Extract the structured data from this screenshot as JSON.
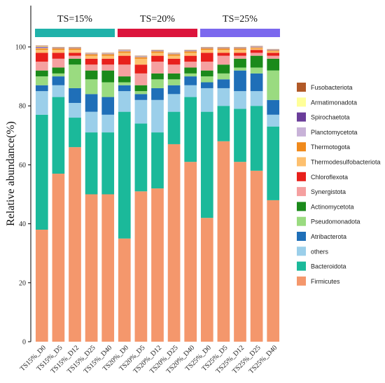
{
  "chart_data": {
    "type": "bar",
    "stacked": true,
    "ylabel": "Relative abundance(%)",
    "xlabel": "",
    "ylim": [
      0,
      100
    ],
    "yticks": [
      0,
      20,
      40,
      60,
      80,
      100
    ],
    "grid": false,
    "legend_position": "right",
    "groups": [
      {
        "label": "TS=15%",
        "color": "#20B2AA",
        "members": [
          0,
          1,
          2,
          3,
          4
        ]
      },
      {
        "label": "TS=20%",
        "color": "#DC143C",
        "members": [
          5,
          6,
          7,
          8,
          9
        ]
      },
      {
        "label": "TS=25%",
        "color": "#7B68EE",
        "members": [
          10,
          11,
          12,
          13,
          14
        ]
      }
    ],
    "categories": [
      "TS15%_D0",
      "TS15%_D5",
      "TS15%_D12",
      "TS15%_D25",
      "TS15%_D40",
      "TS20%_D0",
      "TS20%_D5",
      "TS20%_D12",
      "TS20%_D25",
      "TS20%_D40",
      "TS25%_D0",
      "TS25%_D5",
      "TS25%_D12",
      "TS25%_D25",
      "TS25%_D40"
    ],
    "series": [
      {
        "name": "Firmicutes",
        "color": "#F4976C",
        "values": [
          38,
          57,
          66,
          50,
          50,
          35,
          51,
          52,
          67,
          61,
          42,
          68,
          61,
          58,
          48
        ]
      },
      {
        "name": "Bacteroidota",
        "color": "#1BB99A",
        "values": [
          39,
          26,
          10,
          21,
          21,
          43,
          23,
          19,
          11,
          22,
          36,
          12,
          18,
          22,
          25
        ]
      },
      {
        "name": "others",
        "color": "#9BCFEA",
        "values": [
          8,
          4,
          5,
          7,
          6,
          7,
          8,
          11,
          6,
          4,
          8,
          6,
          6,
          5,
          4
        ]
      },
      {
        "name": "Atribacterota",
        "color": "#1F6FB8",
        "values": [
          2,
          3,
          5,
          6,
          6,
          2,
          2,
          4,
          3,
          3,
          2,
          3,
          7,
          6,
          5
        ]
      },
      {
        "name": "Pseudomonadota",
        "color": "#9ADB80",
        "values": [
          3,
          1,
          8,
          5,
          5,
          1,
          1,
          3,
          2,
          1,
          2,
          2,
          1,
          2,
          10
        ]
      },
      {
        "name": "Actinomycetota",
        "color": "#1B8A1B",
        "values": [
          2,
          2,
          2,
          3,
          4,
          2,
          2,
          2,
          2,
          2,
          2,
          3,
          3,
          4,
          4
        ]
      },
      {
        "name": "Synergistota",
        "color": "#F5A0A0",
        "values": [
          3,
          3,
          1,
          2,
          2,
          4,
          4,
          4,
          3,
          2,
          3,
          3,
          1,
          1,
          1
        ]
      },
      {
        "name": "Chloroflexota",
        "color": "#E8201C",
        "values": [
          3,
          2,
          1,
          2,
          2,
          3,
          3,
          2,
          2,
          2,
          3,
          1,
          1,
          1,
          1
        ]
      },
      {
        "name": "Thermodesulfobacteriota",
        "color": "#FDC06F",
        "values": [
          1,
          1,
          1,
          1,
          1,
          1,
          2,
          1,
          1,
          1,
          1,
          1,
          1,
          0.5,
          0.5
        ]
      },
      {
        "name": "Thermotogota",
        "color": "#F08A1C",
        "values": [
          0.5,
          0.5,
          0.5,
          0.5,
          0.5,
          0.5,
          0.5,
          0.5,
          0.5,
          0.5,
          0.5,
          0.5,
          0.5,
          0.3,
          0.3
        ]
      },
      {
        "name": "Planctomycetota",
        "color": "#C8B2D8",
        "values": [
          0.3,
          0.2,
          0.2,
          0.2,
          0.2,
          0.3,
          0.2,
          0.2,
          0.2,
          0.2,
          0.2,
          0.2,
          0.2,
          0.2,
          0.2
        ]
      },
      {
        "name": "Spirochaetota",
        "color": "#6A3D9A",
        "values": [
          0.2,
          0.1,
          0.1,
          0.1,
          0.1,
          0.1,
          0.1,
          0.1,
          0.1,
          0.1,
          0.1,
          0.1,
          0.1,
          0.1,
          0.1
        ]
      },
      {
        "name": "Armatimonadota",
        "color": "#FFFF99",
        "values": [
          0.2,
          0.1,
          0.1,
          0.1,
          0.1,
          0.1,
          0.1,
          0.1,
          0.1,
          0.1,
          0.1,
          0.1,
          0.1,
          0.1,
          0.1
        ]
      },
      {
        "name": "Fusobacteriota",
        "color": "#B15928",
        "values": [
          0.2,
          0.1,
          0.1,
          0.1,
          0.1,
          0.1,
          0.1,
          0.1,
          0.1,
          0.1,
          0.1,
          0.1,
          0.1,
          0.1,
          0.1
        ]
      }
    ],
    "legend_order": [
      "Fusobacteriota",
      "Armatimonadota",
      "Spirochaetota",
      "Planctomycetota",
      "Thermotogota",
      "Thermodesulfobacteriota",
      "Chloroflexota",
      "Synergistota",
      "Actinomycetota",
      "Pseudomonadota",
      "Atribacterota",
      "others",
      "Bacteroidota",
      "Firmicutes"
    ]
  }
}
